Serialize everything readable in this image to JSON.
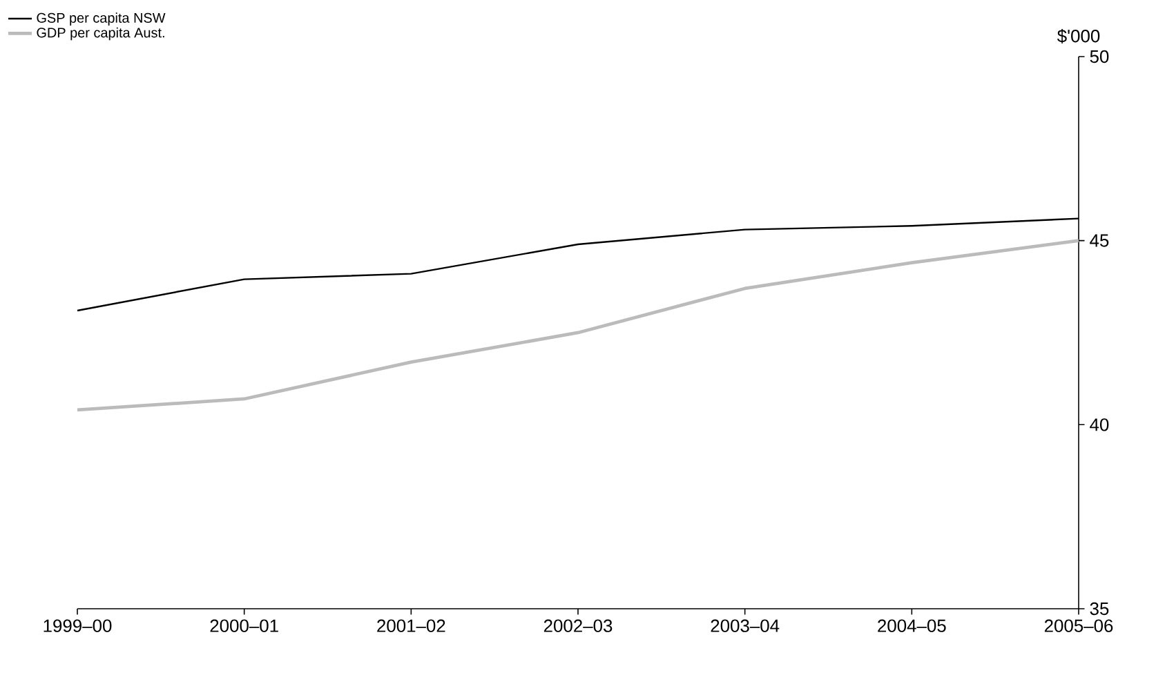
{
  "chart_data": {
    "type": "line",
    "ylabel": "$'000",
    "categories": [
      "1999–00",
      "2000–01",
      "2001–02",
      "2002–03",
      "2003–04",
      "2004–05",
      "2005–06"
    ],
    "series": [
      {
        "name": "GSP per capita NSW",
        "color": "#000000",
        "values": [
          43.1,
          43.95,
          44.1,
          44.9,
          45.3,
          45.4,
          45.6
        ]
      },
      {
        "name": "GDP per capita Aust.",
        "color": "#bbbbbb",
        "values": [
          40.4,
          40.7,
          41.7,
          42.5,
          43.7,
          44.4,
          45.0
        ]
      }
    ],
    "ylim": [
      35,
      50
    ],
    "yticks": [
      35,
      40,
      45,
      50
    ],
    "grid": false,
    "legend": "top left",
    "marker": "none",
    "line_style": "solid"
  }
}
